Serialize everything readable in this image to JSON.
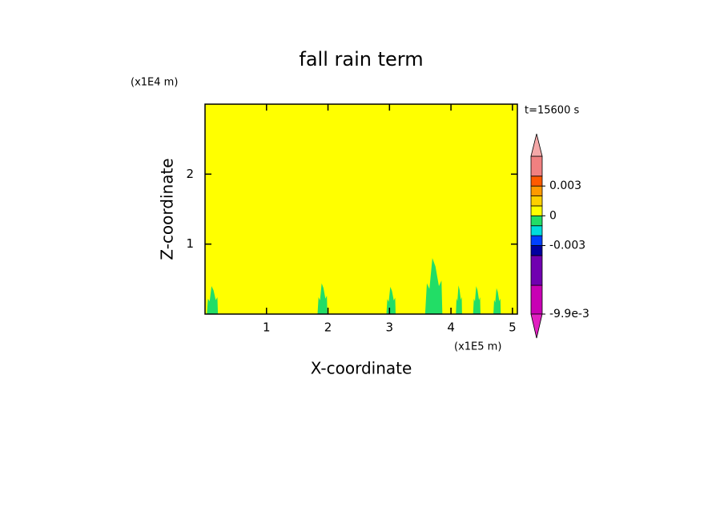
{
  "chart_data": {
    "type": "contour",
    "title": "fall rain term",
    "x_label": "X-coordinate",
    "y_label": "Z-coordinate",
    "x_unit": "(x1E5 m)",
    "y_unit": "(x1E4 m)",
    "time_label": "t=15600 s",
    "xlim": [
      0,
      5.08
    ],
    "ylim": [
      0,
      3
    ],
    "xticks": [
      1,
      2,
      3,
      4,
      5
    ],
    "yticks": [
      1,
      2
    ],
    "background_value": 0.0005,
    "features": [
      {
        "x": [
          0.03,
          0.21
        ],
        "z": [
          0,
          0.4
        ],
        "value": -0.0005
      },
      {
        "x": [
          1.83,
          1.99
        ],
        "z": [
          0,
          0.44
        ],
        "value": -0.0005
      },
      {
        "x": [
          2.95,
          3.1
        ],
        "z": [
          0,
          0.39
        ],
        "value": -0.0005
      },
      {
        "x": [
          3.58,
          3.86
        ],
        "z": [
          0,
          0.8
        ],
        "value": -0.0005
      },
      {
        "x": [
          4.08,
          4.18
        ],
        "z": [
          0,
          0.41
        ],
        "value": -0.0005
      },
      {
        "x": [
          4.36,
          4.48
        ],
        "z": [
          0,
          0.4
        ],
        "value": -0.0005
      },
      {
        "x": [
          4.69,
          4.81
        ],
        "z": [
          0,
          0.37
        ],
        "value": -0.0005
      }
    ],
    "colorbar": {
      "levels": [
        -0.0099,
        -0.007,
        -0.004,
        -0.003,
        -0.002,
        -0.001,
        0,
        0.001,
        0.002,
        0.003,
        0.004,
        0.006
      ],
      "colors": [
        "#c800b4",
        "#7000b0",
        "#0000a0",
        "#0040ff",
        "#00dcdc",
        "#22dd66",
        "#ffff00",
        "#ffd000",
        "#ff9a00",
        "#ff5a00",
        "#f08080"
      ],
      "extend_colors": [
        "#e020c0",
        "#f4a8a8"
      ],
      "ticks": [
        {
          "value": -0.0099,
          "label": "-9.9e-3"
        },
        -0.003,
        0,
        0.003
      ]
    }
  }
}
